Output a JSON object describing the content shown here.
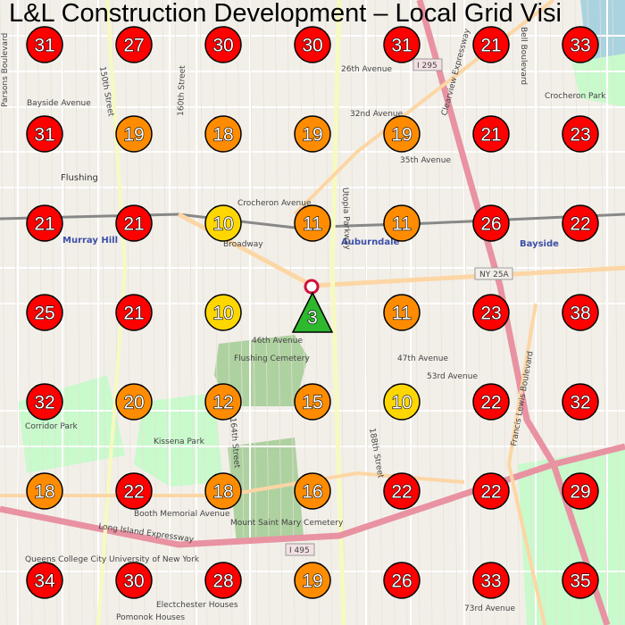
{
  "title": "L&L Construction Development – Local Grid Visi",
  "colors": {
    "high": "#ff0000",
    "mid": "#ff8c00",
    "low": "#ffd700",
    "best": "#2db82d"
  },
  "grid": [
    [
      31,
      27,
      30,
      30,
      31,
      21,
      33
    ],
    [
      31,
      19,
      18,
      19,
      19,
      21,
      23
    ],
    [
      21,
      21,
      10,
      11,
      11,
      26,
      22
    ],
    [
      25,
      21,
      10,
      3,
      11,
      23,
      38
    ],
    [
      32,
      20,
      12,
      15,
      10,
      22,
      32
    ],
    [
      18,
      22,
      18,
      16,
      22,
      22,
      29
    ],
    [
      34,
      30,
      28,
      19,
      26,
      33,
      35
    ]
  ],
  "center_rank": 3,
  "map_labels": {
    "flushing": "Flushing",
    "auburndale": "Auburndale",
    "murray_hill": "Murray Hill",
    "bayside": "Bayside",
    "flushing_cemetery": "Flushing Cemetery",
    "kissena_park": "Kissena Park",
    "corridor_park": "Corridor Park",
    "mount_saint_mary": "Mount Saint Mary Cemetery",
    "crocheron_park": "Crocheron Park",
    "queens_college": "Queens College City University of New York",
    "pomonok": "Pomonok Houses",
    "electchester": "Electchester Houses",
    "utopia_pkwy": "Utopia Parkway",
    "lie": "Long Island Expressway",
    "clearview": "Clearview Expressway",
    "francis_lewis": "Francis Lewis Boulevard",
    "ny25a": "NY 25A",
    "i295": "I 295",
    "i495": "I 495",
    "bayside_ave": "Bayside Avenue",
    "ave32": "32nd Avenue",
    "ave35": "35th Avenue",
    "ave46": "46th Avenue",
    "ave47": "47th Avenue",
    "ave53": "53rd Avenue",
    "booth": "Booth Memorial Avenue",
    "ave26": "26th Avenue",
    "crocheron_ave": "Crocheron Avenue",
    "bell_blvd": "Bell Boulevard",
    "parsons": "Parsons Boulevard",
    "st150": "150th Street",
    "st188": "188th Street",
    "ave73": "73rd Avenue",
    "broadway": "Broadway",
    "st164": "164th Street",
    "st160": "160th Street"
  }
}
